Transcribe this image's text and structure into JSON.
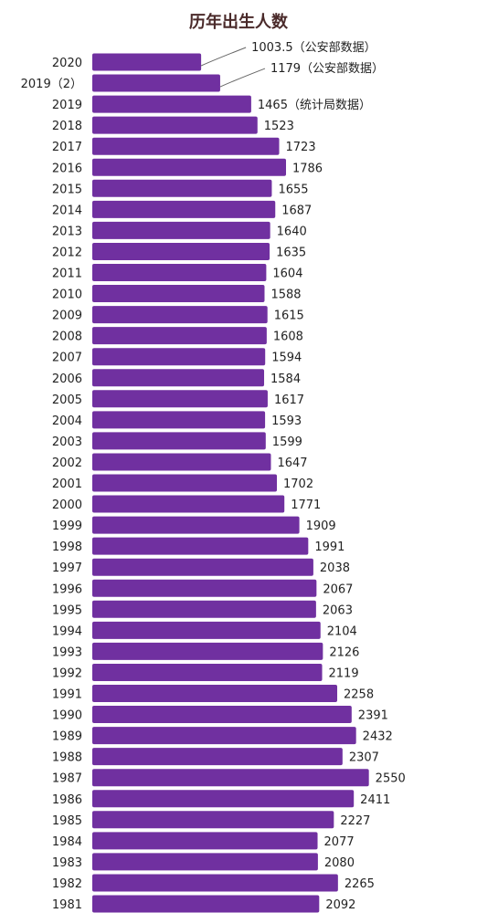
{
  "chart_data": {
    "type": "bar",
    "orientation": "horizontal",
    "title": "历年出生人数",
    "xlabel": "",
    "ylabel": "",
    "bar_color": "#7030a0",
    "grid": false,
    "categories": [
      "2020",
      "2019（2）",
      "2019",
      "2018",
      "2017",
      "2016",
      "2015",
      "2014",
      "2013",
      "2012",
      "2011",
      "2010",
      "2009",
      "2008",
      "2007",
      "2006",
      "2005",
      "2004",
      "2003",
      "2002",
      "2001",
      "2000",
      "1999",
      "1998",
      "1997",
      "1996",
      "1995",
      "1994",
      "1993",
      "1992",
      "1991",
      "1990",
      "1989",
      "1988",
      "1987",
      "1986",
      "1985",
      "1984",
      "1983",
      "1982",
      "1981"
    ],
    "values": [
      1003.5,
      1179,
      1465,
      1523,
      1723,
      1786,
      1655,
      1687,
      1640,
      1635,
      1604,
      1588,
      1615,
      1608,
      1594,
      1584,
      1617,
      1593,
      1599,
      1647,
      1702,
      1771,
      1909,
      1991,
      2038,
      2067,
      2063,
      2104,
      2126,
      2119,
      2258,
      2391,
      2432,
      2307,
      2550,
      2411,
      2227,
      2077,
      2080,
      2265,
      2092
    ],
    "value_labels": [
      "1003.5（公安部数据）",
      "1179（公安部数据）",
      "1465（统计局数据）",
      "1523",
      "1723",
      "1786",
      "1655",
      "1687",
      "1640",
      "1635",
      "1604",
      "1588",
      "1615",
      "1608",
      "1594",
      "1584",
      "1617",
      "1593",
      "1599",
      "1647",
      "1702",
      "1771",
      "1909",
      "1991",
      "2038",
      "2067",
      "2063",
      "2104",
      "2126",
      "2119",
      "2258",
      "2391",
      "2432",
      "2307",
      "2550",
      "2411",
      "2227",
      "2077",
      "2080",
      "2265",
      "2092"
    ]
  }
}
